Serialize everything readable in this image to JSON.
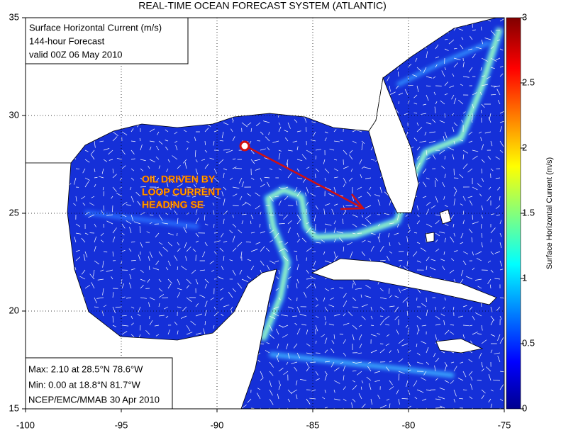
{
  "title": "REAL-TIME OCEAN FORECAST SYSTEM (ATLANTIC)",
  "map": {
    "xlim": [
      -100,
      -75
    ],
    "ylim": [
      15,
      35
    ],
    "xticks": [
      -100,
      -95,
      -90,
      -85,
      -80,
      -75
    ],
    "yticks": [
      15,
      20,
      25,
      30,
      35
    ],
    "grid": true
  },
  "colorbar": {
    "label": "Surface Horizontal Current (m/s)",
    "lim": [
      0,
      3
    ],
    "ticks": [
      0,
      0.5,
      1,
      1.5,
      2,
      2.5,
      3
    ]
  },
  "header_box": [
    "Surface Horizontal Current (m/s)",
    "144-hour Forecast",
    "valid 00Z 06 May 2010"
  ],
  "stats_box": [
    "Max: 2.10 at 28.5°N 78.6°W",
    "Min: 0.00 at 18.8°N 81.7°W",
    "NCEP/EMC/MMAB 30 Apr 2010"
  ],
  "annotation": [
    "OIL DRIVEN BY",
    "LOOP CURRENT",
    "HEADING SE"
  ]
}
